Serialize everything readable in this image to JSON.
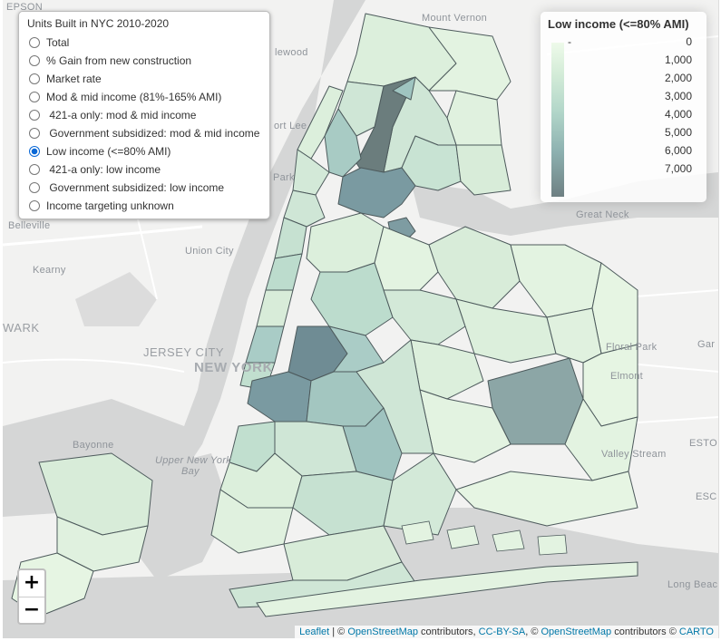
{
  "map": {
    "places": [
      {
        "label": "EPSON",
        "cls": ""
      },
      {
        "label": "Mount Vernon",
        "cls": ""
      },
      {
        "label": "lewood",
        "cls": ""
      },
      {
        "label": "ort Lee",
        "cls": ""
      },
      {
        "label": "Park",
        "cls": ""
      },
      {
        "label": "Belleville",
        "cls": ""
      },
      {
        "label": "Union City",
        "cls": ""
      },
      {
        "label": "Kearny",
        "cls": ""
      },
      {
        "label": "WARK",
        "cls": "med"
      },
      {
        "label": "JERSEY CITY",
        "cls": "med"
      },
      {
        "label": "NEW YORK",
        "cls": "big"
      },
      {
        "label": "Bayonne",
        "cls": ""
      },
      {
        "label": "Upper New York",
        "cls": ""
      },
      {
        "label": "Bay",
        "cls": ""
      },
      {
        "label": "Great Neck",
        "cls": ""
      },
      {
        "label": "Floral Park",
        "cls": ""
      },
      {
        "label": "Elmont",
        "cls": ""
      },
      {
        "label": "Valley Stream",
        "cls": ""
      },
      {
        "label": "Long Beach",
        "cls": ""
      },
      {
        "label": "Gar",
        "cls": ""
      },
      {
        "label": "ESTO",
        "cls": ""
      },
      {
        "label": "ESC",
        "cls": ""
      }
    ]
  },
  "layers": {
    "title": "Units Built in NYC 2010-2020",
    "options": [
      {
        "label": "Total",
        "checked": false
      },
      {
        "label": "% Gain from new construction",
        "checked": false
      },
      {
        "label": "Market rate",
        "checked": false
      },
      {
        "label": "Mod & mid income (81%-165% AMI)",
        "checked": false
      },
      {
        "label": " 421-a only: mod & mid income",
        "checked": false
      },
      {
        "label": " Government subsidized: mod & mid income",
        "checked": false
      },
      {
        "label": "Low income (<=80% AMI)",
        "checked": true
      },
      {
        "label": " 421-a only: low income",
        "checked": false
      },
      {
        "label": " Government subsidized: low income",
        "checked": false
      },
      {
        "label": "Income targeting unknown",
        "checked": false
      }
    ]
  },
  "legend": {
    "title": "Low income (<=80% AMI)",
    "ticks": [
      "0",
      "1,000",
      "2,000",
      "3,000",
      "4,000",
      "5,000",
      "6,000",
      "7,000"
    ],
    "colors": {
      "low": "#eefaea",
      "high": "#6e8083"
    }
  },
  "zoom": {
    "in": "+",
    "out": "−"
  },
  "attribution": {
    "leaflet": "Leaflet",
    "sep1": " | © ",
    "osm1": "OpenStreetMap",
    "t1": " contributors, ",
    "ccbysa": "CC-BY-SA",
    "t2": ", © ",
    "osm2": "OpenStreetMap",
    "t3": " contributors © ",
    "carto": "CARTO"
  }
}
